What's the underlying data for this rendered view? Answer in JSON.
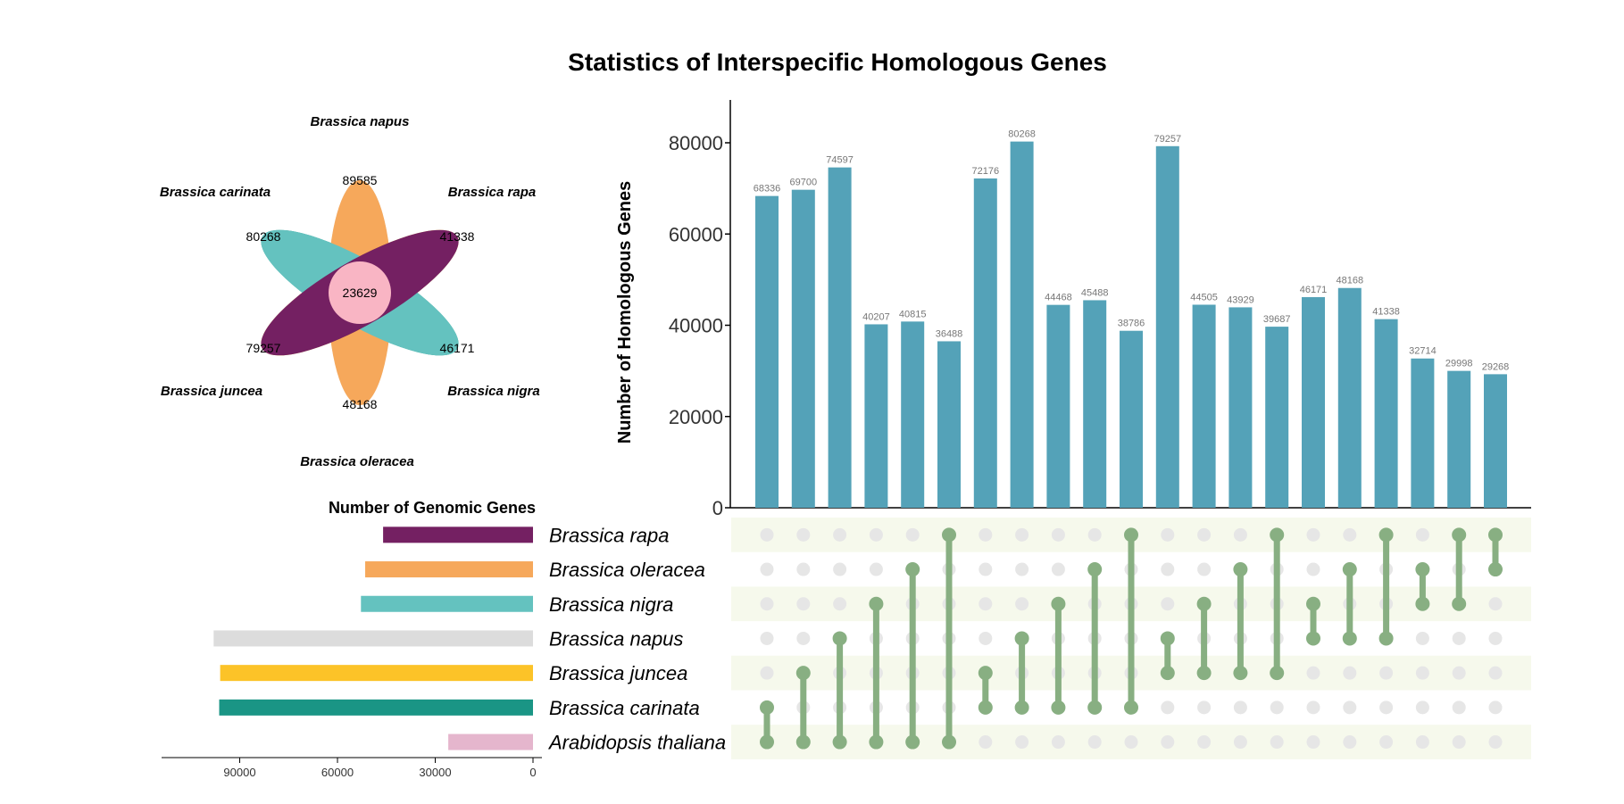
{
  "title": "Statistics of Interspecific Homologous Genes",
  "colors": {
    "bar": "#54a2b8",
    "dot_active": "#88af82",
    "dot_inactive": "#e6e6e6",
    "stripe": "#f6f9ec",
    "Brassica rapa": "#742062",
    "Brassica oleracea": "#f6a85b",
    "Brassica nigra": "#64c2bf",
    "Brassica napus": "#dcdcdc",
    "Brassica juncea": "#fcc328",
    "Brassica carinata": "#1a9585",
    "Arabidopsis thaliana": "#e5b6cd",
    "core": "#f9b5c4"
  },
  "flower": {
    "core_value": "23629",
    "petals": [
      {
        "species": "Brassica napus",
        "value": "89585"
      },
      {
        "species": "Brassica rapa",
        "value": "41338"
      },
      {
        "species": "Brassica nigra",
        "value": "46171"
      },
      {
        "species": "Brassica oleracea",
        "value": "48168"
      },
      {
        "species": "Brassica juncea",
        "value": "79257"
      },
      {
        "species": "Brassica carinata",
        "value": "80268"
      }
    ]
  },
  "genomic": {
    "title": "Number of Genomic Genes",
    "species": [
      "Brassica rapa",
      "Brassica oleracea",
      "Brassica nigra",
      "Brassica napus",
      "Brassica juncea",
      "Brassica carinata",
      "Arabidopsis thaliana"
    ],
    "values": [
      46000,
      51500,
      52800,
      98000,
      96000,
      96300,
      26000
    ],
    "ticks": [
      "90000",
      "60000",
      "30000",
      "0"
    ]
  },
  "chart_data": {
    "type": "bar",
    "title": "Statistics of Interspecific Homologous Genes",
    "ylabel": "Number of Homologous Genes",
    "ylim": [
      0,
      90000
    ],
    "yticks": [
      "0",
      "20000",
      "40000",
      "60000",
      "80000"
    ],
    "values": [
      68336,
      69700,
      74597,
      40207,
      40815,
      36488,
      72176,
      80268,
      44468,
      45488,
      38786,
      79257,
      44505,
      43929,
      39687,
      46171,
      48168,
      41338,
      32714,
      29998,
      29268
    ],
    "labels": [
      "68336",
      "69700",
      "74597",
      "40207",
      "40815",
      "36488",
      "72176",
      "80268",
      "44468",
      "45488",
      "38786",
      "79257",
      "44505",
      "43929",
      "39687",
      "46171",
      "48168",
      "41338",
      "32714",
      "29998",
      "29268"
    ],
    "sets": [
      [
        "Brassica carinata",
        "Arabidopsis thaliana"
      ],
      [
        "Brassica juncea",
        "Arabidopsis thaliana"
      ],
      [
        "Brassica napus",
        "Arabidopsis thaliana"
      ],
      [
        "Brassica nigra",
        "Arabidopsis thaliana"
      ],
      [
        "Brassica oleracea",
        "Arabidopsis thaliana"
      ],
      [
        "Brassica rapa",
        "Arabidopsis thaliana"
      ],
      [
        "Brassica juncea",
        "Brassica carinata"
      ],
      [
        "Brassica napus",
        "Brassica carinata"
      ],
      [
        "Brassica nigra",
        "Brassica carinata"
      ],
      [
        "Brassica oleracea",
        "Brassica carinata"
      ],
      [
        "Brassica rapa",
        "Brassica carinata"
      ],
      [
        "Brassica napus",
        "Brassica juncea"
      ],
      [
        "Brassica nigra",
        "Brassica juncea"
      ],
      [
        "Brassica oleracea",
        "Brassica juncea"
      ],
      [
        "Brassica rapa",
        "Brassica juncea"
      ],
      [
        "Brassica nigra",
        "Brassica napus"
      ],
      [
        "Brassica oleracea",
        "Brassica napus"
      ],
      [
        "Brassica rapa",
        "Brassica napus"
      ],
      [
        "Brassica oleracea",
        "Brassica nigra"
      ],
      [
        "Brassica rapa",
        "Brassica nigra"
      ],
      [
        "Brassica rapa",
        "Brassica oleracea"
      ]
    ]
  }
}
